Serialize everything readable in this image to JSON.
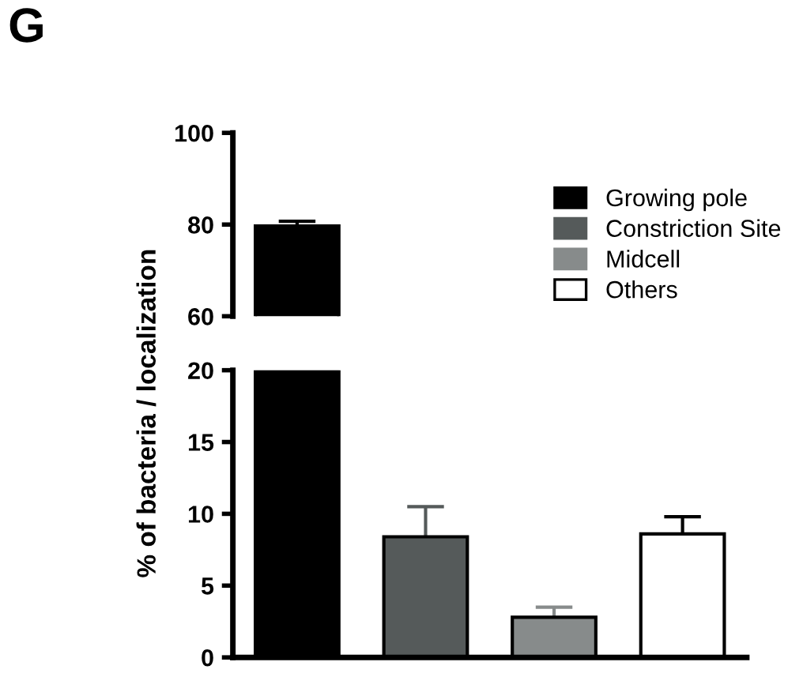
{
  "chart_data": [
    {
      "type": "bar",
      "title": "G",
      "categories": [
        null
      ],
      "ylim": [
        60,
        100
      ],
      "yticks": [
        60,
        80,
        100
      ],
      "tick_labels": "y",
      "grid": false,
      "series": [
        {
          "color": "#000000",
          "values": [
            79.7
          ],
          "errors": [
            [
              79.7,
              80.7
            ]
          ]
        }
      ]
    },
    {
      "type": "bar",
      "ylabel": "% of bacteria / localization",
      "categories": [
        null,
        null,
        null,
        null
      ],
      "ylim": [
        0,
        20
      ],
      "yticks": [
        0,
        5,
        10,
        15,
        20
      ],
      "tick_labels": "y",
      "grid": false,
      "legend": "top right",
      "series": [
        {
          "name": "Growing pole",
          "color": "#000000",
          "values": [
            20,
            null,
            null,
            null
          ]
        },
        {
          "name": "Constriction Site",
          "color": "#555a5a",
          "values": [
            null,
            8.4,
            null,
            null
          ],
          "errors": [
            null,
            [
              8.4,
              10.5
            ],
            null,
            null
          ]
        },
        {
          "name": "Midcell",
          "color": "#878b8b",
          "values": [
            null,
            null,
            2.8,
            null
          ],
          "errors": [
            null,
            null,
            [
              2.8,
              3.5
            ],
            null
          ]
        },
        {
          "name": "Others",
          "color": "#ffffff",
          "values": [
            null,
            null,
            null,
            8.6
          ],
          "errors": [
            null,
            null,
            null,
            [
              8.6,
              9.8
            ]
          ]
        }
      ]
    }
  ]
}
